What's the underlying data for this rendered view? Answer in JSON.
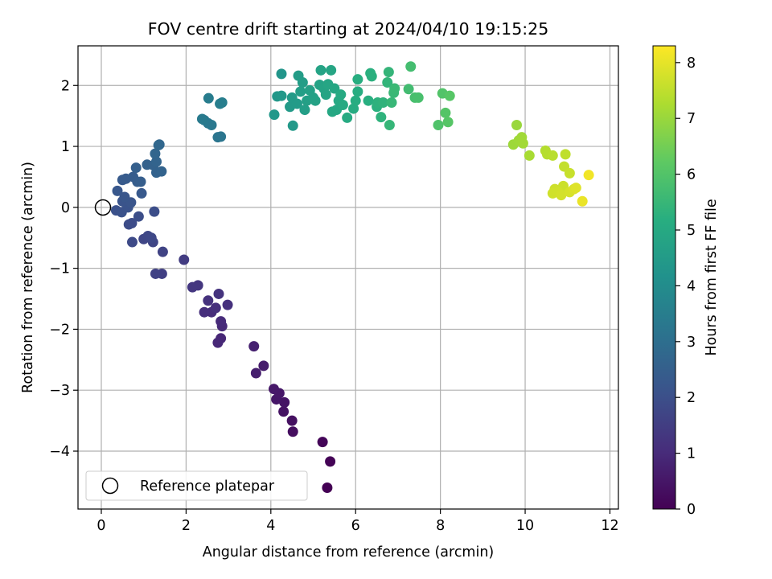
{
  "chart_data": {
    "type": "scatter",
    "title": "FOV centre drift starting at 2024/04/10 19:15:25",
    "xlabel": "Angular distance from reference (arcmin)",
    "ylabel": "Rotation from reference (arcmin)",
    "xlim": [
      -0.55,
      12.2
    ],
    "ylim": [
      -4.95,
      2.65
    ],
    "xticks": [
      0,
      2,
      4,
      6,
      8,
      10,
      12
    ],
    "yticks": [
      -4,
      -3,
      -2,
      -1,
      0,
      1,
      2
    ],
    "grid": true,
    "legend": {
      "placement": "lower-left",
      "entries": [
        "Reference platepar"
      ]
    },
    "reference_point": {
      "x": 0,
      "y": 0
    },
    "colorbar": {
      "label": "Hours from first FF file",
      "range": [
        0,
        8.3
      ],
      "ticks": [
        0,
        1,
        2,
        3,
        4,
        5,
        6,
        7,
        8
      ],
      "colormap": "viridis"
    },
    "series": [
      {
        "points": [
          {
            "x": 5.33,
            "y": -4.6,
            "t": 0.0
          },
          {
            "x": 5.4,
            "y": -4.17,
            "t": 0.05
          },
          {
            "x": 5.22,
            "y": -3.85,
            "t": 0.1
          },
          {
            "x": 4.52,
            "y": -3.68,
            "t": 0.3
          },
          {
            "x": 4.5,
            "y": -3.5,
            "t": 0.35
          },
          {
            "x": 4.3,
            "y": -3.35,
            "t": 0.4
          },
          {
            "x": 4.32,
            "y": -3.2,
            "t": 0.45
          },
          {
            "x": 4.13,
            "y": -3.15,
            "t": 0.5
          },
          {
            "x": 4.2,
            "y": -3.05,
            "t": 0.52
          },
          {
            "x": 4.07,
            "y": -2.98,
            "t": 0.55
          },
          {
            "x": 3.83,
            "y": -2.6,
            "t": 0.65
          },
          {
            "x": 3.65,
            "y": -2.72,
            "t": 0.7
          },
          {
            "x": 3.6,
            "y": -2.28,
            "t": 0.75
          },
          {
            "x": 2.82,
            "y": -2.15,
            "t": 0.9
          },
          {
            "x": 2.75,
            "y": -2.22,
            "t": 0.93
          },
          {
            "x": 2.85,
            "y": -1.95,
            "t": 0.97
          },
          {
            "x": 2.82,
            "y": -1.87,
            "t": 1.0
          },
          {
            "x": 2.6,
            "y": -1.72,
            "t": 1.05
          },
          {
            "x": 2.43,
            "y": -1.72,
            "t": 1.1
          },
          {
            "x": 2.7,
            "y": -1.65,
            "t": 1.12
          },
          {
            "x": 2.98,
            "y": -1.6,
            "t": 1.15
          },
          {
            "x": 2.52,
            "y": -1.53,
            "t": 1.18
          },
          {
            "x": 2.77,
            "y": -1.42,
            "t": 1.2
          },
          {
            "x": 2.28,
            "y": -1.28,
            "t": 1.3
          },
          {
            "x": 2.15,
            "y": -1.31,
            "t": 1.33
          },
          {
            "x": 1.95,
            "y": -0.86,
            "t": 1.45
          },
          {
            "x": 1.43,
            "y": -1.09,
            "t": 1.55
          },
          {
            "x": 1.28,
            "y": -1.09,
            "t": 1.6
          },
          {
            "x": 1.45,
            "y": -0.73,
            "t": 1.65
          },
          {
            "x": 1.22,
            "y": -0.57,
            "t": 1.7
          },
          {
            "x": 1.0,
            "y": -0.52,
            "t": 1.75
          },
          {
            "x": 1.1,
            "y": -0.47,
            "t": 1.78
          },
          {
            "x": 1.18,
            "y": -0.5,
            "t": 1.8
          },
          {
            "x": 0.73,
            "y": -0.57,
            "t": 1.85
          },
          {
            "x": 0.65,
            "y": -0.28,
            "t": 1.9
          },
          {
            "x": 0.72,
            "y": -0.26,
            "t": 1.92
          },
          {
            "x": 0.88,
            "y": -0.15,
            "t": 1.95
          },
          {
            "x": 1.25,
            "y": -0.07,
            "t": 1.97
          },
          {
            "x": 0.35,
            "y": -0.05,
            "t": 2.05
          },
          {
            "x": 0.48,
            "y": -0.08,
            "t": 2.08
          },
          {
            "x": 0.63,
            "y": 0.0,
            "t": 2.1
          },
          {
            "x": 0.6,
            "y": 0.05,
            "t": 2.12
          },
          {
            "x": 0.5,
            "y": 0.1,
            "t": 2.15
          },
          {
            "x": 0.7,
            "y": 0.08,
            "t": 2.17
          },
          {
            "x": 0.55,
            "y": 0.17,
            "t": 2.2
          },
          {
            "x": 0.38,
            "y": 0.27,
            "t": 2.25
          },
          {
            "x": 0.95,
            "y": 0.23,
            "t": 2.3
          },
          {
            "x": 0.5,
            "y": 0.45,
            "t": 2.35
          },
          {
            "x": 0.58,
            "y": 0.47,
            "t": 2.38
          },
          {
            "x": 0.75,
            "y": 0.5,
            "t": 2.4
          },
          {
            "x": 0.85,
            "y": 0.42,
            "t": 2.42
          },
          {
            "x": 0.93,
            "y": 0.42,
            "t": 2.45
          },
          {
            "x": 0.82,
            "y": 0.65,
            "t": 2.5
          },
          {
            "x": 1.08,
            "y": 0.7,
            "t": 2.55
          },
          {
            "x": 1.23,
            "y": 0.69,
            "t": 2.58
          },
          {
            "x": 1.3,
            "y": 0.57,
            "t": 2.6
          },
          {
            "x": 1.42,
            "y": 0.59,
            "t": 2.62
          },
          {
            "x": 1.3,
            "y": 0.75,
            "t": 2.65
          },
          {
            "x": 1.27,
            "y": 0.88,
            "t": 2.7
          },
          {
            "x": 1.35,
            "y": 1.02,
            "t": 2.75
          },
          {
            "x": 1.37,
            "y": 1.03,
            "t": 2.77
          },
          {
            "x": 2.75,
            "y": 1.15,
            "t": 3.2
          },
          {
            "x": 2.82,
            "y": 1.16,
            "t": 3.22
          },
          {
            "x": 2.6,
            "y": 1.35,
            "t": 3.3
          },
          {
            "x": 2.52,
            "y": 1.38,
            "t": 3.33
          },
          {
            "x": 2.43,
            "y": 1.43,
            "t": 3.36
          },
          {
            "x": 2.38,
            "y": 1.45,
            "t": 3.38
          },
          {
            "x": 2.53,
            "y": 1.79,
            "t": 3.45
          },
          {
            "x": 2.8,
            "y": 1.7,
            "t": 3.5
          },
          {
            "x": 2.85,
            "y": 1.72,
            "t": 3.52
          },
          {
            "x": 4.25,
            "y": 2.19,
            "t": 4.3
          },
          {
            "x": 4.08,
            "y": 1.52,
            "t": 4.35
          },
          {
            "x": 4.15,
            "y": 1.82,
            "t": 4.38
          },
          {
            "x": 4.25,
            "y": 1.83,
            "t": 4.4
          },
          {
            "x": 4.52,
            "y": 1.34,
            "t": 4.45
          },
          {
            "x": 4.45,
            "y": 1.65,
            "t": 4.48
          },
          {
            "x": 4.5,
            "y": 1.8,
            "t": 4.5
          },
          {
            "x": 4.62,
            "y": 1.7,
            "t": 4.52
          },
          {
            "x": 4.65,
            "y": 2.16,
            "t": 4.55
          },
          {
            "x": 4.75,
            "y": 2.05,
            "t": 4.58
          },
          {
            "x": 4.7,
            "y": 1.9,
            "t": 4.6
          },
          {
            "x": 4.8,
            "y": 1.6,
            "t": 4.62
          },
          {
            "x": 4.85,
            "y": 1.75,
            "t": 4.65
          },
          {
            "x": 4.92,
            "y": 1.92,
            "t": 4.68
          },
          {
            "x": 5.0,
            "y": 1.8,
            "t": 4.7
          },
          {
            "x": 5.05,
            "y": 1.75,
            "t": 4.72
          },
          {
            "x": 5.15,
            "y": 2.01,
            "t": 4.75
          },
          {
            "x": 5.18,
            "y": 2.25,
            "t": 4.78
          },
          {
            "x": 5.25,
            "y": 1.95,
            "t": 4.8
          },
          {
            "x": 5.3,
            "y": 1.85,
            "t": 4.83
          },
          {
            "x": 5.35,
            "y": 2.02,
            "t": 4.85
          },
          {
            "x": 5.42,
            "y": 2.25,
            "t": 4.88
          },
          {
            "x": 5.5,
            "y": 1.95,
            "t": 4.9
          },
          {
            "x": 5.45,
            "y": 1.57,
            "t": 4.92
          },
          {
            "x": 5.55,
            "y": 1.6,
            "t": 4.95
          },
          {
            "x": 5.6,
            "y": 1.75,
            "t": 4.97
          },
          {
            "x": 5.65,
            "y": 1.85,
            "t": 5.0
          },
          {
            "x": 5.7,
            "y": 1.68,
            "t": 5.02
          },
          {
            "x": 5.8,
            "y": 1.47,
            "t": 5.05
          },
          {
            "x": 5.95,
            "y": 1.62,
            "t": 5.08
          },
          {
            "x": 6.0,
            "y": 1.75,
            "t": 5.1
          },
          {
            "x": 6.05,
            "y": 1.9,
            "t": 5.12
          },
          {
            "x": 6.05,
            "y": 2.1,
            "t": 5.15
          },
          {
            "x": 6.3,
            "y": 1.75,
            "t": 5.2
          },
          {
            "x": 6.35,
            "y": 2.2,
            "t": 5.22
          },
          {
            "x": 6.38,
            "y": 2.15,
            "t": 5.24
          },
          {
            "x": 6.5,
            "y": 1.65,
            "t": 5.27
          },
          {
            "x": 6.52,
            "y": 1.72,
            "t": 5.3
          },
          {
            "x": 6.6,
            "y": 1.48,
            "t": 5.33
          },
          {
            "x": 6.65,
            "y": 1.72,
            "t": 5.36
          },
          {
            "x": 6.75,
            "y": 2.05,
            "t": 5.4
          },
          {
            "x": 6.78,
            "y": 2.22,
            "t": 5.43
          },
          {
            "x": 6.8,
            "y": 1.35,
            "t": 5.46
          },
          {
            "x": 6.85,
            "y": 1.72,
            "t": 5.5
          },
          {
            "x": 6.9,
            "y": 1.88,
            "t": 5.53
          },
          {
            "x": 6.92,
            "y": 1.95,
            "t": 5.56
          },
          {
            "x": 7.25,
            "y": 1.94,
            "t": 5.7
          },
          {
            "x": 7.3,
            "y": 2.31,
            "t": 5.75
          },
          {
            "x": 7.4,
            "y": 1.8,
            "t": 5.8
          },
          {
            "x": 7.48,
            "y": 1.8,
            "t": 5.83
          },
          {
            "x": 7.95,
            "y": 1.35,
            "t": 5.95
          },
          {
            "x": 8.05,
            "y": 1.87,
            "t": 6.0
          },
          {
            "x": 8.12,
            "y": 1.55,
            "t": 6.05
          },
          {
            "x": 8.18,
            "y": 1.4,
            "t": 6.08
          },
          {
            "x": 8.22,
            "y": 1.83,
            "t": 6.1
          },
          {
            "x": 9.8,
            "y": 1.35,
            "t": 7.0
          },
          {
            "x": 9.72,
            "y": 1.03,
            "t": 7.05
          },
          {
            "x": 9.85,
            "y": 1.1,
            "t": 7.08
          },
          {
            "x": 9.92,
            "y": 1.15,
            "t": 7.1
          },
          {
            "x": 9.95,
            "y": 1.05,
            "t": 7.12
          },
          {
            "x": 10.1,
            "y": 0.85,
            "t": 7.2
          },
          {
            "x": 10.48,
            "y": 0.93,
            "t": 7.35
          },
          {
            "x": 10.52,
            "y": 0.87,
            "t": 7.38
          },
          {
            "x": 10.65,
            "y": 0.85,
            "t": 7.42
          },
          {
            "x": 10.95,
            "y": 0.87,
            "t": 7.5
          },
          {
            "x": 10.92,
            "y": 0.67,
            "t": 7.55
          },
          {
            "x": 11.05,
            "y": 0.56,
            "t": 7.6
          },
          {
            "x": 10.9,
            "y": 0.35,
            "t": 7.65
          },
          {
            "x": 10.7,
            "y": 0.3,
            "t": 7.68
          },
          {
            "x": 10.65,
            "y": 0.23,
            "t": 7.7
          },
          {
            "x": 10.78,
            "y": 0.25,
            "t": 7.72
          },
          {
            "x": 10.85,
            "y": 0.2,
            "t": 7.75
          },
          {
            "x": 11.05,
            "y": 0.25,
            "t": 7.8
          },
          {
            "x": 11.15,
            "y": 0.3,
            "t": 7.85
          },
          {
            "x": 11.2,
            "y": 0.32,
            "t": 7.9
          },
          {
            "x": 11.35,
            "y": 0.1,
            "t": 8.05
          },
          {
            "x": 11.5,
            "y": 0.53,
            "t": 8.15
          }
        ]
      }
    ]
  }
}
